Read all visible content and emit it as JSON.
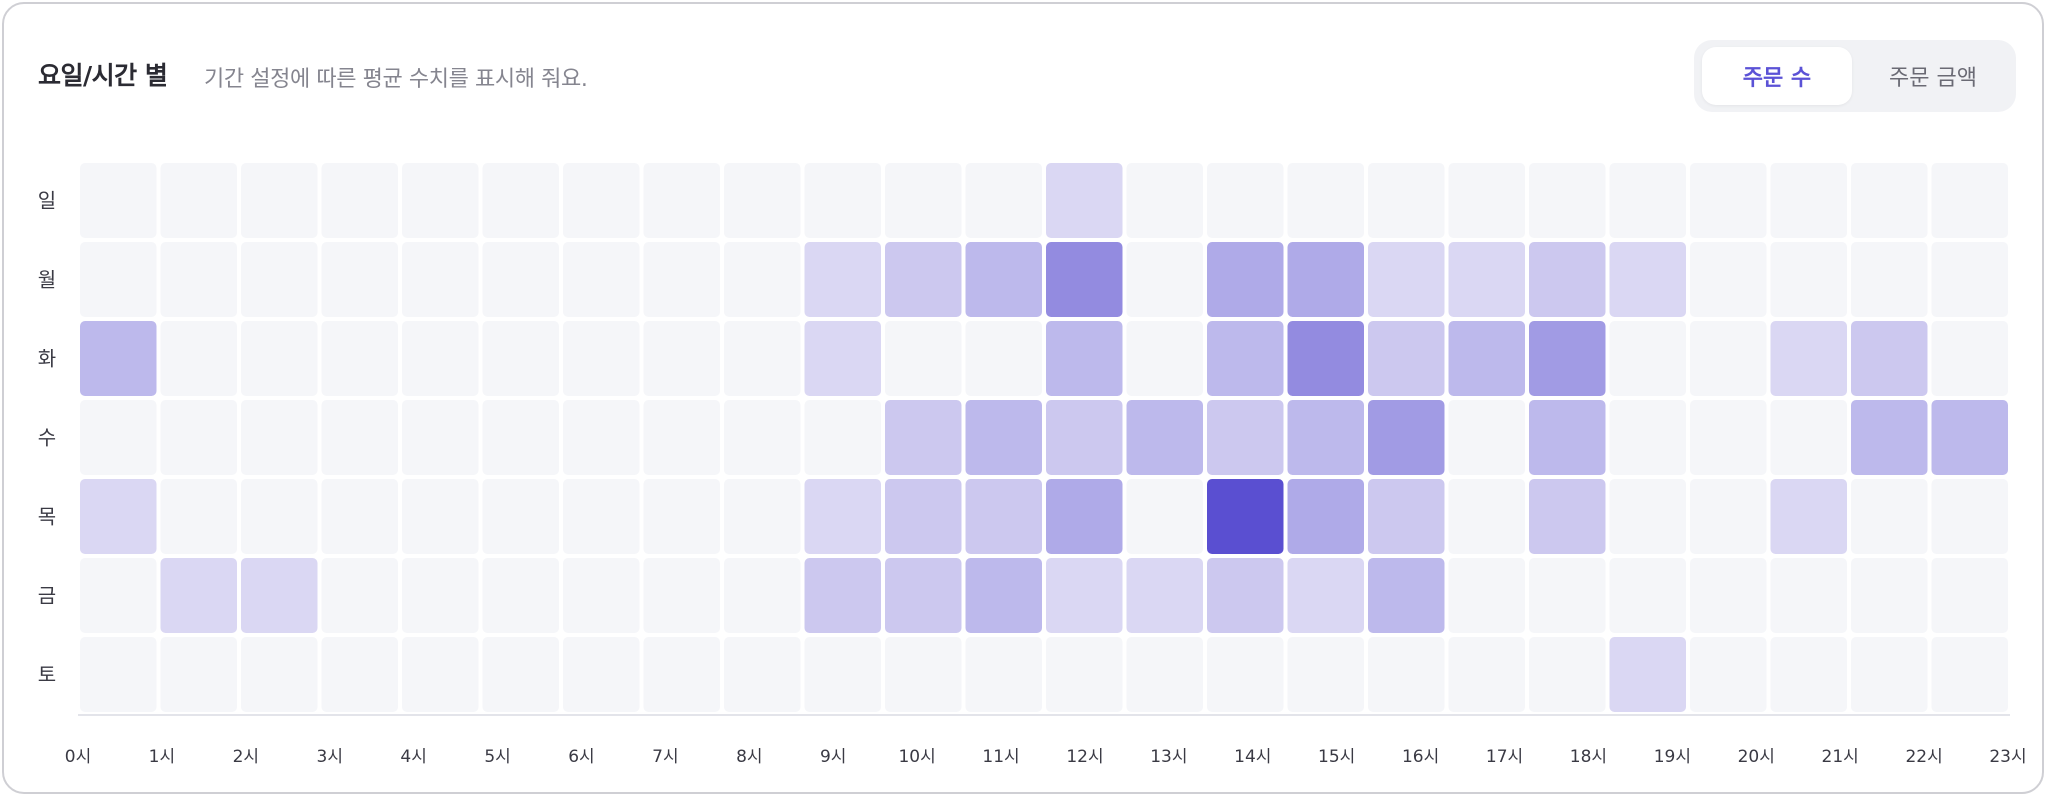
{
  "header": {
    "title": "요일/시간 별",
    "subtitle": "기간 설정에 따른 평균 수치를 표시해 줘요."
  },
  "toggle": {
    "options": [
      "주문 수",
      "주문 금액"
    ],
    "selected": "주문 수"
  },
  "colors": {
    "empty_cell": "#f5f6f9",
    "scale_low": "#e8e6f7",
    "scale_high": "#5a4fd1",
    "accent": "#5b52d6"
  },
  "chart_data": {
    "type": "heatmap",
    "title": "요일/시간 별",
    "y_categories": [
      "일",
      "월",
      "화",
      "수",
      "목",
      "금",
      "토"
    ],
    "x_categories": [
      "0시",
      "1시",
      "2시",
      "3시",
      "4시",
      "5시",
      "6시",
      "7시",
      "8시",
      "9시",
      "10시",
      "11시",
      "12시",
      "13시",
      "14시",
      "15시",
      "16시",
      "17시",
      "18시",
      "19시",
      "20시",
      "21시",
      "22시",
      "23시"
    ],
    "value_range": [
      0,
      10
    ],
    "values": [
      [
        0,
        0,
        0,
        0,
        0,
        0,
        0,
        0,
        0,
        0,
        0,
        0,
        1,
        0,
        0,
        0,
        0,
        0,
        0,
        0,
        0,
        0,
        0,
        0
      ],
      [
        0,
        0,
        0,
        0,
        0,
        0,
        0,
        0,
        0,
        1,
        2,
        3,
        6,
        0,
        4,
        4,
        1,
        1,
        2,
        1,
        0,
        0,
        0,
        0
      ],
      [
        3,
        0,
        0,
        0,
        0,
        0,
        0,
        0,
        0,
        1,
        0,
        0,
        3,
        0,
        3,
        6,
        2,
        3,
        5,
        0,
        0,
        1,
        2,
        0
      ],
      [
        0,
        0,
        0,
        0,
        0,
        0,
        0,
        0,
        0,
        0,
        2,
        3,
        2,
        3,
        2,
        3,
        5,
        0,
        3,
        0,
        0,
        0,
        3,
        3
      ],
      [
        1,
        0,
        0,
        0,
        0,
        0,
        0,
        0,
        0,
        1,
        2,
        2,
        4,
        0,
        10,
        4,
        2,
        0,
        2,
        0,
        0,
        1,
        0,
        0
      ],
      [
        0,
        1,
        1,
        0,
        0,
        0,
        0,
        0,
        0,
        2,
        2,
        3,
        1,
        1,
        2,
        1,
        3,
        0,
        0,
        0,
        0,
        0,
        0,
        0
      ],
      [
        0,
        0,
        0,
        0,
        0,
        0,
        0,
        0,
        0,
        0,
        0,
        0,
        0,
        0,
        0,
        0,
        0,
        0,
        0,
        1,
        0,
        0,
        0,
        0
      ]
    ]
  }
}
